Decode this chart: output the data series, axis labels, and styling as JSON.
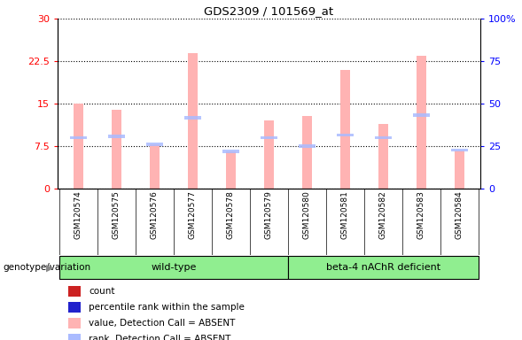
{
  "title": "GDS2309 / 101569_at",
  "samples": [
    "GSM120574",
    "GSM120575",
    "GSM120576",
    "GSM120577",
    "GSM120578",
    "GSM120579",
    "GSM120580",
    "GSM120581",
    "GSM120582",
    "GSM120583",
    "GSM120584"
  ],
  "bar_heights": [
    15.0,
    14.0,
    7.8,
    24.0,
    6.6,
    12.0,
    12.8,
    21.0,
    11.5,
    23.5,
    6.8
  ],
  "rank_heights": [
    9.0,
    9.2,
    7.8,
    12.5,
    6.6,
    9.0,
    7.5,
    9.5,
    9.0,
    13.0,
    6.8
  ],
  "bar_color_absent": "#ffb3b3",
  "rank_color_absent": "#aabbff",
  "ylim_left": [
    0,
    30
  ],
  "ylim_right": [
    0,
    100
  ],
  "yticks_left": [
    0,
    7.5,
    15,
    22.5,
    30
  ],
  "ytick_labels_left": [
    "0",
    "7.5",
    "15",
    "22.5",
    "30"
  ],
  "yticks_right": [
    0,
    25,
    50,
    75,
    100
  ],
  "ytick_labels_right": [
    "0",
    "25",
    "50",
    "75",
    "100%"
  ],
  "wt_count": 6,
  "def_count": 5,
  "genotype_label": "genotype/variation",
  "wild_type_label": "wild-type",
  "deficient_label": "beta-4 nAChR deficient",
  "legend_items": [
    {
      "label": "count",
      "color": "#cc2222"
    },
    {
      "label": "percentile rank within the sample",
      "color": "#2222cc"
    },
    {
      "label": "value, Detection Call = ABSENT",
      "color": "#ffb3b3"
    },
    {
      "label": "rank, Detection Call = ABSENT",
      "color": "#aabbff"
    }
  ],
  "bg_color": "#d8d8d8",
  "green_color": "#90ee90",
  "bar_width": 0.25
}
